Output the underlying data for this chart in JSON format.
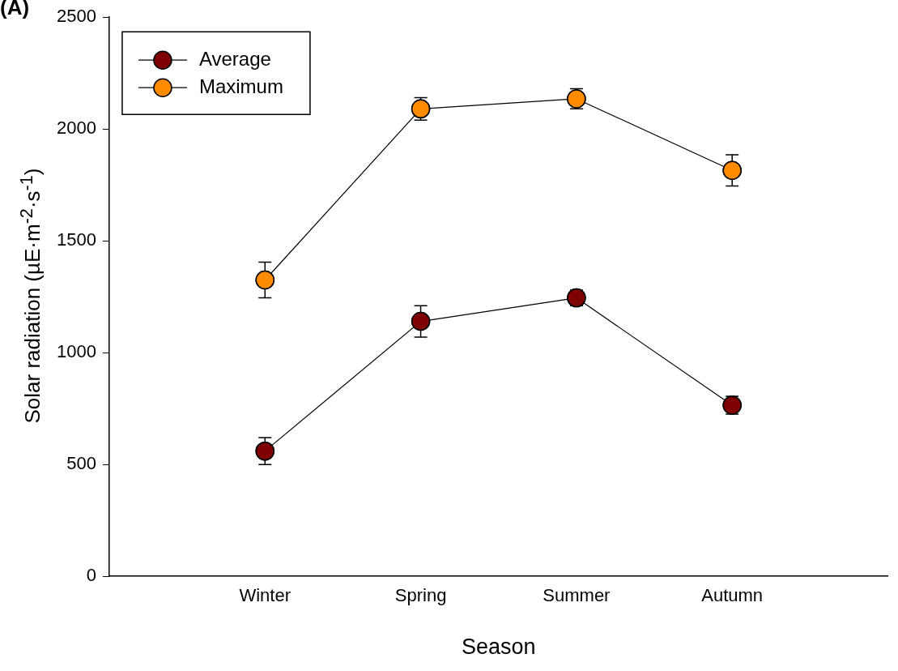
{
  "chart_data": {
    "type": "line",
    "xlabel": "Season",
    "ylabel": "Solar radiation (µE·m$^{-2}$·s$^{-1}$)",
    "annotations": [
      "(A)"
    ],
    "categories": [
      "Winter",
      "Spring",
      "Summer",
      "Autumn"
    ],
    "series": [
      {
        "name": "Average",
        "color": "#7f0000",
        "values": [
          560,
          1140,
          1245,
          765
        ],
        "errors": [
          60,
          70,
          35,
          40
        ]
      },
      {
        "name": "Maximum",
        "color": "#ff8c00",
        "values": [
          1325,
          2090,
          2135,
          1815
        ],
        "errors": [
          80,
          50,
          45,
          70
        ]
      }
    ],
    "ylim": [
      0,
      2500
    ],
    "yticks": [
      0,
      500,
      1000,
      1500,
      2000,
      2500
    ],
    "grid": false,
    "legend": "top left",
    "marker": "circle",
    "line_style": "solid"
  }
}
